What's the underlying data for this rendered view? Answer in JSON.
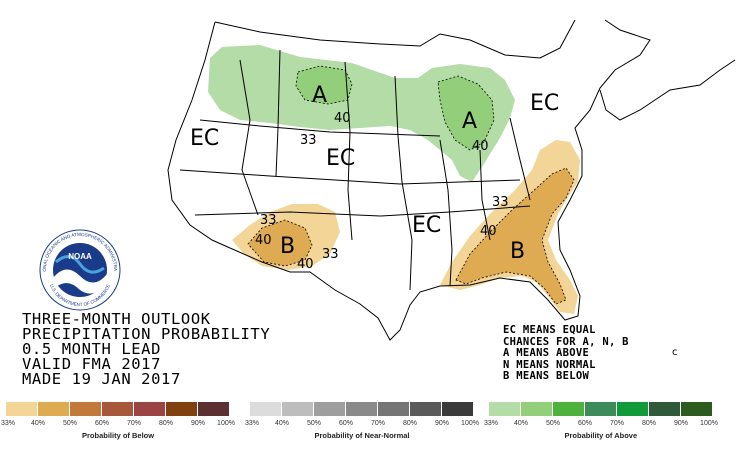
{
  "title_lines": [
    "THREE-MONTH OUTLOOK",
    "PRECIPITATION PROBABILITY",
    "0.5 MONTH LEAD",
    "VALID FMA 2017",
    "MADE 19 JAN 2017"
  ],
  "notes": [
    "EC MEANS EQUAL",
    "CHANCES FOR A, N, B",
    "A MEANS ABOVE",
    "N MEANS NORMAL",
    "B MEANS BELOW"
  ],
  "logo": {
    "center_text": "NOAA",
    "ring_top": "NATIONAL OCEANIC AND ATMOSPHERIC ADMINISTRATION",
    "ring_bottom": "U.S. DEPARTMENT OF COMMERCE"
  },
  "map_labels": {
    "ec": "EC",
    "a": "A",
    "b": "B",
    "c33": "33",
    "c40": "40",
    "c": "c"
  },
  "legend": [
    {
      "name": "Probability of Below",
      "colors": [
        "#f2d597",
        "#deaa52",
        "#c27a3c",
        "#a8583a",
        "#9c4444",
        "#804010",
        "#5c3030"
      ],
      "ticks": [
        "33%",
        "40%",
        "50%",
        "60%",
        "70%",
        "80%",
        "90%",
        "100%"
      ]
    },
    {
      "name": "Probability of Near-Normal",
      "colors": [
        "#dcdcdc",
        "#bdbdbd",
        "#9e9e9e",
        "#8a8a8a",
        "#757575",
        "#5a5a5a",
        "#3a3a3a"
      ],
      "ticks": [
        "33%",
        "40%",
        "50%",
        "60%",
        "70%",
        "80%",
        "90%",
        "100%"
      ]
    },
    {
      "name": "Probability of Above",
      "colors": [
        "#b3dca6",
        "#93cf7a",
        "#4eb13e",
        "#3d8a5a",
        "#109a3a",
        "#2f5a3a",
        "#2d5a1e"
      ],
      "ticks": [
        "33%",
        "40%",
        "50%",
        "60%",
        "70%",
        "80%",
        "90%",
        "100%"
      ]
    }
  ]
}
